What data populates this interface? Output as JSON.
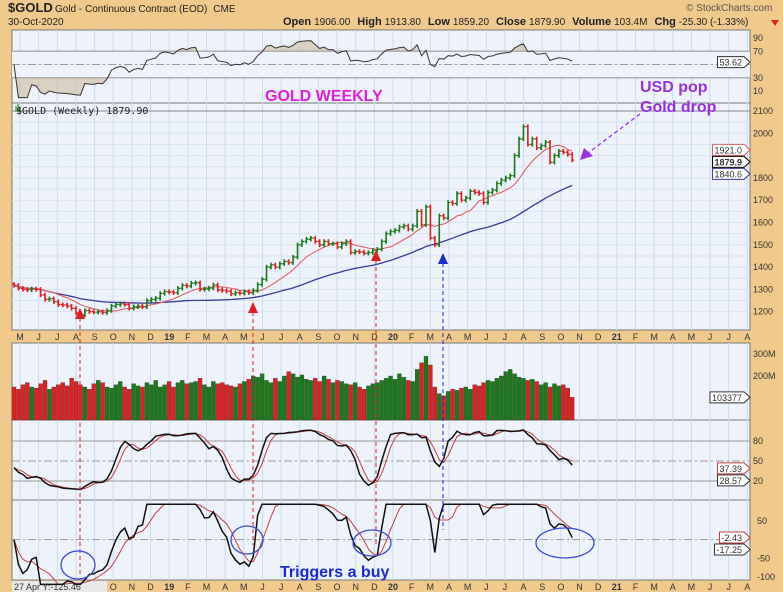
{
  "header": {
    "symbol": "$GOLD",
    "name": "Gold - Continuous Contract (EOD)",
    "exchange": "CME",
    "date": "30-Oct-2020",
    "watermark": "© StockCharts.com",
    "open_label": "Open",
    "open": "1906.00",
    "high_label": "High",
    "high": "1913.80",
    "low_label": "Low",
    "low": "1859.20",
    "close_label": "Close",
    "close": "1879.90",
    "volume_label": "Volume",
    "volume": "103.4M",
    "chg_label": "Chg",
    "chg": "-25.30 (-1.33%)",
    "chg_icon": "down-triangle-icon"
  },
  "colors": {
    "up": "#1a7a1a",
    "down": "#e02020",
    "ma_short": "#e06060",
    "ma_long": "#3a3a9a",
    "annotation_title": "#e020e0",
    "annotation_usd": "#9a30e0",
    "annotation_buy": "#1a2ad0",
    "frame": "#f2c98c",
    "plot_bg": "#eef3fb"
  },
  "chart_data": {
    "type": "bar",
    "frequency": "weekly",
    "price_legend": "$GOLD (Weekly) 1879.90",
    "start_week": "May 2018",
    "end_date": "30-Oct-2020",
    "closes": [
      1318,
      1305,
      1300,
      1298,
      1302,
      1300,
      1275,
      1255,
      1258,
      1245,
      1232,
      1230,
      1225,
      1215,
      1195,
      1185,
      1205,
      1200,
      1198,
      1200,
      1196,
      1205,
      1225,
      1232,
      1235,
      1232,
      1215,
      1222,
      1225,
      1222,
      1250,
      1255,
      1260,
      1282,
      1290,
      1288,
      1285,
      1305,
      1318,
      1315,
      1328,
      1330,
      1300,
      1302,
      1306,
      1320,
      1298,
      1295,
      1292,
      1280,
      1285,
      1283,
      1290,
      1285,
      1295,
      1322,
      1345,
      1400,
      1410,
      1400,
      1415,
      1425,
      1420,
      1445,
      1500,
      1515,
      1525,
      1530,
      1515,
      1500,
      1515,
      1505,
      1505,
      1490,
      1505,
      1515,
      1465,
      1470,
      1468,
      1462,
      1465,
      1475,
      1480,
      1515,
      1550,
      1560,
      1565,
      1580,
      1585,
      1570,
      1585,
      1650,
      1590,
      1670,
      1530,
      1500,
      1630,
      1620,
      1690,
      1685,
      1730,
      1700,
      1710,
      1740,
      1735,
      1730,
      1690,
      1735,
      1745,
      1775,
      1790,
      1800,
      1810,
      1900,
      1975,
      2030,
      1950,
      1975,
      1935,
      1945,
      1960,
      1870,
      1900,
      1920,
      1915,
      1905,
      1880
    ],
    "volume_millions": [
      150,
      140,
      160,
      170,
      150,
      145,
      165,
      180,
      140,
      150,
      160,
      170,
      155,
      190,
      175,
      160,
      150,
      140,
      165,
      180,
      170,
      150,
      145,
      160,
      175,
      150,
      140,
      165,
      155,
      150,
      170,
      160,
      180,
      150,
      160,
      175,
      150,
      170,
      180,
      165,
      170,
      175,
      190,
      160,
      150,
      175,
      165,
      170,
      160,
      155,
      150,
      165,
      175,
      185,
      200,
      195,
      210,
      180,
      170,
      190,
      175,
      200,
      220,
      210,
      195,
      205,
      185,
      180,
      190,
      175,
      200,
      185,
      170,
      180,
      175,
      165,
      160,
      170,
      150,
      140,
      155,
      165,
      170,
      180,
      190,
      200,
      185,
      210,
      195,
      180,
      175,
      230,
      260,
      290,
      250,
      150,
      120,
      110,
      130,
      140,
      135,
      145,
      150,
      140,
      160,
      155,
      170,
      180,
      175,
      190,
      200,
      220,
      230,
      210,
      195,
      190,
      180,
      185,
      175,
      160,
      170,
      150,
      165,
      155,
      160,
      145,
      103
    ],
    "price_axis": {
      "ticks": [
        "2100",
        "2000",
        "1800",
        "1700",
        "1600",
        "1500",
        "1400",
        "1300",
        "1200"
      ],
      "range": [
        1150,
        2130
      ]
    },
    "price_markers": {
      "ma_short": "1921.0",
      "last": "1879.9",
      "ma_long": "1840.6"
    },
    "rsi_axis": {
      "ticks": [
        "90",
        "70",
        "30",
        "10"
      ],
      "marker": "53.62"
    },
    "volume_axis": {
      "ticks": [
        "300M",
        "200M"
      ],
      "marker": "103377"
    },
    "stoch_axis": {
      "ticks": [
        "80",
        "50",
        "20"
      ],
      "markers": [
        "37.39",
        "28.57"
      ]
    },
    "cci_axis": {
      "ticks": [
        "50",
        "-50",
        "-100"
      ],
      "markers": [
        "-2.43",
        "-17.25"
      ]
    },
    "x_ticks": [
      "M",
      "J",
      "J",
      "A",
      "S",
      "O",
      "N",
      "D",
      "19",
      "F",
      "M",
      "A",
      "M",
      "J",
      "J",
      "A",
      "S",
      "O",
      "N",
      "D",
      "20",
      "F",
      "M",
      "A",
      "M",
      "J",
      "J",
      "A",
      "S",
      "O",
      "N",
      "D",
      "21",
      "F",
      "M",
      "A",
      "M",
      "J",
      "J",
      "A"
    ],
    "crosshair_readout": "27 Apr Y:-125.46"
  },
  "annotations": {
    "title": "GOLD WEEKLY",
    "usd_line1": "USD pop",
    "usd_line2": "Gold drop",
    "buy": "Triggers a buy"
  }
}
